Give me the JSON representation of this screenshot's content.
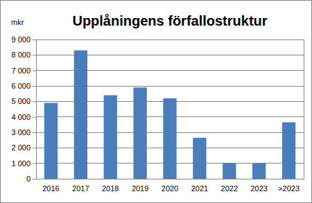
{
  "chart_data": {
    "type": "bar",
    "title": "Upplåningens förfallostruktur",
    "y_label": "mkr",
    "categories": [
      "2016",
      "2017",
      "2018",
      "2019",
      "2020",
      "2021",
      "2022",
      "2023",
      ">2023"
    ],
    "values": [
      4900,
      8300,
      5400,
      5900,
      5200,
      2650,
      1000,
      1000,
      3650
    ],
    "color": "#4a7ebb",
    "ylim": [
      0,
      9000
    ],
    "yticks": [
      0,
      {
        "value": 1000,
        "label": "1 000"
      },
      {
        "value": 2000,
        "label": "2 000"
      },
      {
        "value": 3000,
        "label": "3 000"
      },
      {
        "value": 4000,
        "label": "4 000"
      },
      {
        "value": 5000,
        "label": "5 000"
      },
      {
        "value": 6000,
        "label": "6 000"
      },
      {
        "value": 7000,
        "label": "7 000"
      },
      {
        "value": 8000,
        "label": "8 000"
      },
      {
        "value": 9000,
        "label": "9 000"
      }
    ],
    "grid": true
  }
}
